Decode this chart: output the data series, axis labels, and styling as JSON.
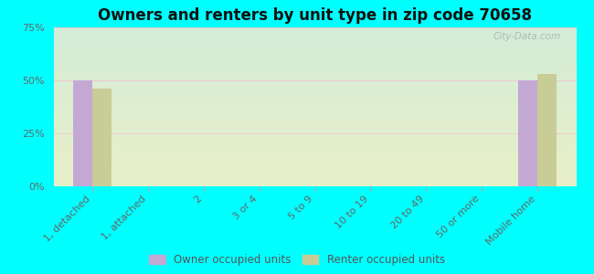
{
  "title": "Owners and renters by unit type in zip code 70658",
  "categories": [
    "1, detached",
    "1, attached",
    "2",
    "3 or 4",
    "5 to 9",
    "10 to 19",
    "20 to 49",
    "50 or more",
    "Mobile home"
  ],
  "owner_values": [
    50,
    0,
    0,
    0,
    0,
    0,
    0,
    0,
    50
  ],
  "renter_values": [
    46,
    0,
    0,
    0,
    0,
    0,
    0,
    0,
    53
  ],
  "owner_color": "#c4a8d4",
  "renter_color": "#c8cc96",
  "background_color": "#00ffff",
  "plot_bg_top": "#d4ecd8",
  "plot_bg_bottom": "#e8f0c8",
  "ylim": [
    0,
    75
  ],
  "yticks": [
    0,
    25,
    50,
    75
  ],
  "ytick_labels": [
    "0%",
    "25%",
    "50%",
    "75%"
  ],
  "bar_width": 0.35,
  "watermark": "City-Data.com",
  "legend_labels": [
    "Owner occupied units",
    "Renter occupied units"
  ],
  "title_fontsize": 12,
  "axis_fontsize": 8.5,
  "tick_fontsize": 8
}
